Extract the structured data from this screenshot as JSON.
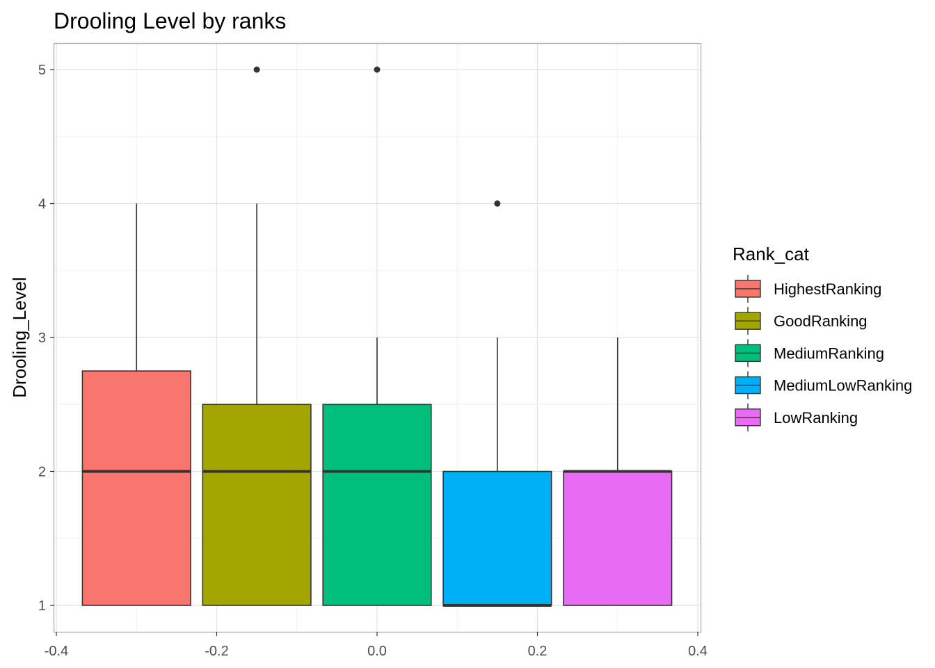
{
  "chart_data": {
    "type": "boxplot",
    "title": "Drooling Level by ranks",
    "xlabel": "",
    "ylabel": "Drooling_Level",
    "xlim": [
      -0.4,
      0.4
    ],
    "ylim": [
      1,
      5
    ],
    "x_ticks": [
      -0.4,
      -0.2,
      0.0,
      0.2,
      0.4
    ],
    "x_tick_labels": [
      "-0.4",
      "-0.2",
      "0.0",
      "0.2",
      "0.4"
    ],
    "y_ticks": [
      1,
      2,
      3,
      4,
      5
    ],
    "y_tick_labels": [
      "1",
      "2",
      "3",
      "4",
      "5"
    ],
    "grid": true,
    "legend": {
      "title": "Rank_cat",
      "placement": "right"
    },
    "series": [
      {
        "name": "HighestRanking",
        "color": "#F8766D",
        "x": -0.3,
        "whisker_low": 1,
        "q1": 1,
        "median": 2,
        "q3": 2.75,
        "whisker_high": 4,
        "outliers": []
      },
      {
        "name": "GoodRanking",
        "color": "#A3A500",
        "x": -0.15,
        "whisker_low": 1,
        "q1": 1,
        "median": 2,
        "q3": 2.5,
        "whisker_high": 4,
        "outliers": [
          5
        ]
      },
      {
        "name": "MediumRanking",
        "color": "#00BF7D",
        "x": 0.0,
        "whisker_low": 1,
        "q1": 1,
        "median": 2,
        "q3": 2.5,
        "whisker_high": 3,
        "outliers": [
          5
        ]
      },
      {
        "name": "MediumLowRanking",
        "color": "#00B0F6",
        "x": 0.15,
        "whisker_low": 1,
        "q1": 1,
        "median": 1,
        "q3": 2,
        "whisker_high": 3,
        "outliers": [
          4
        ]
      },
      {
        "name": "LowRanking",
        "color": "#E76BF3",
        "x": 0.3,
        "whisker_low": 1,
        "q1": 1,
        "median": 2,
        "q3": 2,
        "whisker_high": 3,
        "outliers": []
      }
    ]
  }
}
